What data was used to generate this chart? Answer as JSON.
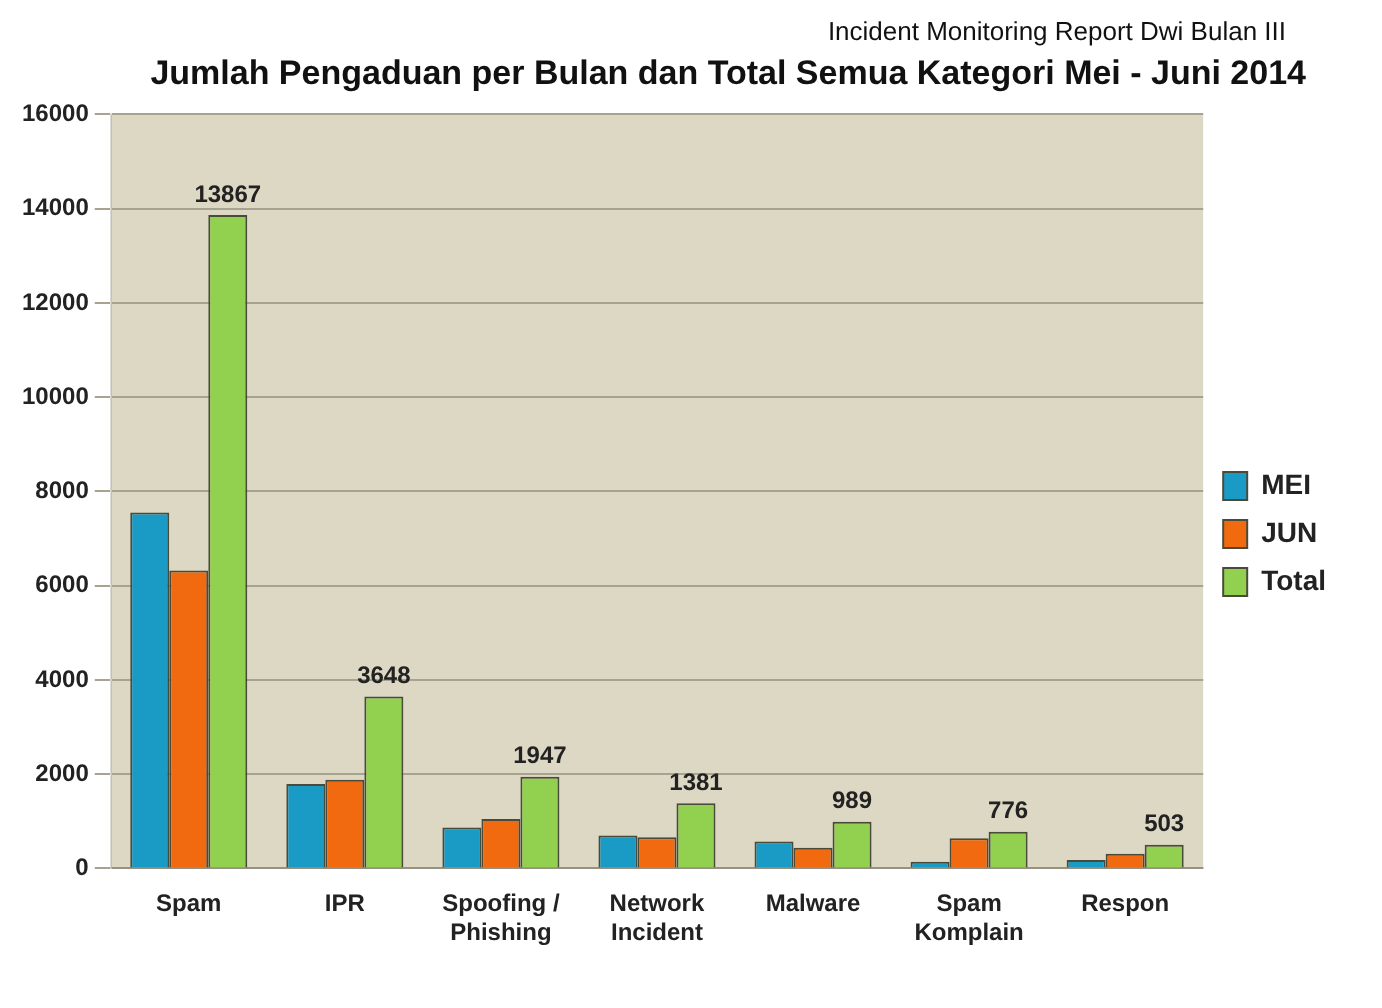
{
  "chart_data": {
    "type": "bar",
    "title": "Jumlah Pengaduan per Bulan dan Total Semua Kategori Mei - Juni 2014",
    "subtitle": "Incident Monitoring  Report Dwi Bulan III",
    "categories": [
      "Spam",
      "IPR",
      "Spoofing / Phishing",
      "Network Incident",
      "Malware",
      "Spam Komplain",
      "Respon"
    ],
    "series": [
      {
        "name": "MEI",
        "color": "#1a9bc6",
        "values": [
          7550,
          1790,
          870,
          700,
          570,
          140,
          180
        ]
      },
      {
        "name": "JUN",
        "color": "#f26a10",
        "values": [
          6320,
          1880,
          1050,
          660,
          440,
          640,
          310
        ]
      },
      {
        "name": "Total",
        "color": "#92d050",
        "values": [
          13867,
          3648,
          1947,
          1381,
          989,
          776,
          503
        ],
        "value_labels": [
          "13867",
          "3648",
          "1947",
          "1381",
          "989",
          "776",
          "503"
        ]
      }
    ],
    "ylim": [
      0,
      16000
    ],
    "yticks": [
      0,
      2000,
      4000,
      6000,
      8000,
      10000,
      12000,
      14000,
      16000
    ],
    "grid": "y",
    "legend": "right"
  }
}
